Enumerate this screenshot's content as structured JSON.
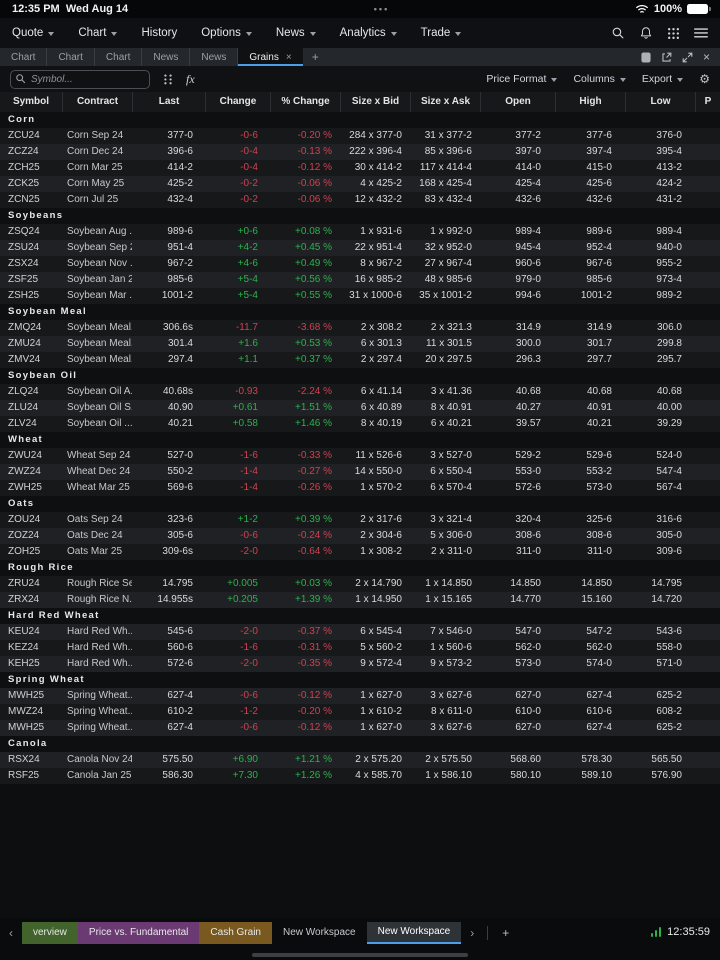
{
  "status_bar": {
    "time": "12:35 PM",
    "date": "Wed Aug 14",
    "ellipsis": "•••",
    "battery_pct": "100%"
  },
  "menu_bar": {
    "items": [
      {
        "label": "Quote",
        "caret": true
      },
      {
        "label": "Chart",
        "caret": true
      },
      {
        "label": "History",
        "caret": false
      },
      {
        "label": "Options",
        "caret": true
      },
      {
        "label": "News",
        "caret": true
      },
      {
        "label": "Analytics",
        "caret": true
      },
      {
        "label": "Trade",
        "caret": true
      }
    ],
    "icons": [
      "search-icon",
      "notifications-bell-icon",
      "apps-grid-icon",
      "hamburger-menu-icon"
    ]
  },
  "tab_bar": {
    "tabs": [
      {
        "label": "Chart",
        "active": false
      },
      {
        "label": "Chart",
        "active": false
      },
      {
        "label": "Chart",
        "active": false
      },
      {
        "label": "News",
        "active": false
      },
      {
        "label": "News",
        "active": false
      },
      {
        "label": "Grains",
        "active": true,
        "close": "×"
      }
    ],
    "add_label": "+",
    "right_icons": [
      "panel-icon",
      "open-external-icon",
      "expand-icon",
      "close-icon"
    ],
    "close_label": "×"
  },
  "toolbar": {
    "search_placeholder": "Symbol...",
    "fx_label": "fx",
    "price_format_label": "Price Format",
    "columns_label": "Columns",
    "export_label": "Export"
  },
  "table": {
    "columns": [
      "Symbol",
      "Contract",
      "Last",
      "Change",
      "% Change",
      "Size x Bid",
      "Size x Ask",
      "Open",
      "High",
      "Low",
      "P"
    ],
    "sections": [
      {
        "name": "Corn",
        "rows": [
          [
            "ZCU24",
            "Corn Sep 24",
            "377-0",
            "-0-6",
            "-0.20 %",
            "284 x 377-0",
            "31 x 377-2",
            "377-2",
            "377-6",
            "376-0"
          ],
          [
            "ZCZ24",
            "Corn Dec 24",
            "396-6",
            "-0-4",
            "-0.13 %",
            "222 x 396-4",
            "85 x 396-6",
            "397-0",
            "397-4",
            "395-4"
          ],
          [
            "ZCH25",
            "Corn Mar 25",
            "414-2",
            "-0-4",
            "-0.12 %",
            "30 x 414-2",
            "117 x 414-4",
            "414-0",
            "415-0",
            "413-2"
          ],
          [
            "ZCK25",
            "Corn May 25",
            "425-2",
            "-0-2",
            "-0.06 %",
            "4 x 425-2",
            "168 x 425-4",
            "425-4",
            "425-6",
            "424-2"
          ],
          [
            "ZCN25",
            "Corn Jul 25",
            "432-4",
            "-0-2",
            "-0.06 %",
            "12 x 432-2",
            "83 x 432-4",
            "432-6",
            "432-6",
            "431-2"
          ]
        ]
      },
      {
        "name": "Soybeans",
        "rows": [
          [
            "ZSQ24",
            "Soybean Aug ...",
            "989-6",
            "+0-6",
            "+0.08 %",
            "1 x 931-6",
            "1 x 992-0",
            "989-4",
            "989-6",
            "989-4"
          ],
          [
            "ZSU24",
            "Soybean Sep 24",
            "951-4",
            "+4-2",
            "+0.45 %",
            "22 x 951-4",
            "32 x 952-0",
            "945-4",
            "952-4",
            "940-0"
          ],
          [
            "ZSX24",
            "Soybean Nov ...",
            "967-2",
            "+4-6",
            "+0.49 %",
            "8 x 967-2",
            "27 x 967-4",
            "960-6",
            "967-6",
            "955-2"
          ],
          [
            "ZSF25",
            "Soybean Jan 25",
            "985-6",
            "+5-4",
            "+0.56 %",
            "16 x 985-2",
            "48 x 985-6",
            "979-0",
            "985-6",
            "973-4"
          ],
          [
            "ZSH25",
            "Soybean Mar ...",
            "1001-2",
            "+5-4",
            "+0.55 %",
            "31 x 1000-6",
            "35 x 1001-2",
            "994-6",
            "1001-2",
            "989-2"
          ]
        ]
      },
      {
        "name": "Soybean Meal",
        "rows": [
          [
            "ZMQ24",
            "Soybean Meal...",
            "306.6s",
            "-11.7",
            "-3.68 %",
            "2 x 308.2",
            "2 x 321.3",
            "314.9",
            "314.9",
            "306.0"
          ],
          [
            "ZMU24",
            "Soybean Meal...",
            "301.4",
            "+1.6",
            "+0.53 %",
            "6 x 301.3",
            "11 x 301.5",
            "300.0",
            "301.7",
            "299.8"
          ],
          [
            "ZMV24",
            "Soybean Meal...",
            "297.4",
            "+1.1",
            "+0.37 %",
            "2 x 297.4",
            "20 x 297.5",
            "296.3",
            "297.7",
            "295.7"
          ]
        ]
      },
      {
        "name": "Soybean Oil",
        "rows": [
          [
            "ZLQ24",
            "Soybean Oil A...",
            "40.68s",
            "-0.93",
            "-2.24 %",
            "6 x 41.14",
            "3 x 41.36",
            "40.68",
            "40.68",
            "40.68"
          ],
          [
            "ZLU24",
            "Soybean Oil S...",
            "40.90",
            "+0.61",
            "+1.51 %",
            "6 x 40.89",
            "8 x 40.91",
            "40.27",
            "40.91",
            "40.00"
          ],
          [
            "ZLV24",
            "Soybean Oil ...",
            "40.21",
            "+0.58",
            "+1.46 %",
            "8 x 40.19",
            "6 x 40.21",
            "39.57",
            "40.21",
            "39.29"
          ]
        ]
      },
      {
        "name": "Wheat",
        "rows": [
          [
            "ZWU24",
            "Wheat Sep 24",
            "527-0",
            "-1-6",
            "-0.33 %",
            "11 x 526-6",
            "3 x 527-0",
            "529-2",
            "529-6",
            "524-0"
          ],
          [
            "ZWZ24",
            "Wheat Dec 24",
            "550-2",
            "-1-4",
            "-0.27 %",
            "14 x 550-0",
            "6 x 550-4",
            "553-0",
            "553-2",
            "547-4"
          ],
          [
            "ZWH25",
            "Wheat Mar 25",
            "569-6",
            "-1-4",
            "-0.26 %",
            "1 x 570-2",
            "6 x 570-4",
            "572-6",
            "573-0",
            "567-4"
          ]
        ]
      },
      {
        "name": "Oats",
        "rows": [
          [
            "ZOU24",
            "Oats Sep 24",
            "323-6",
            "+1-2",
            "+0.39 %",
            "2 x 317-6",
            "3 x 321-4",
            "320-4",
            "325-6",
            "316-6"
          ],
          [
            "ZOZ24",
            "Oats Dec 24",
            "305-6",
            "-0-6",
            "-0.24 %",
            "2 x 304-6",
            "5 x 306-0",
            "308-6",
            "308-6",
            "305-0"
          ],
          [
            "ZOH25",
            "Oats Mar 25",
            "309-6s",
            "-2-0",
            "-0.64 %",
            "1 x 308-2",
            "2 x 311-0",
            "311-0",
            "311-0",
            "309-6"
          ]
        ]
      },
      {
        "name": "Rough Rice",
        "rows": [
          [
            "ZRU24",
            "Rough Rice Se...",
            "14.795",
            "+0.005",
            "+0.03 %",
            "2 x 14.790",
            "1 x 14.850",
            "14.850",
            "14.850",
            "14.795"
          ],
          [
            "ZRX24",
            "Rough Rice N...",
            "14.955s",
            "+0.205",
            "+1.39 %",
            "1 x 14.950",
            "1 x 15.165",
            "14.770",
            "15.160",
            "14.720"
          ]
        ]
      },
      {
        "name": "Hard Red Wheat",
        "rows": [
          [
            "KEU24",
            "Hard Red Wh...",
            "545-6",
            "-2-0",
            "-0.37 %",
            "6 x 545-4",
            "7 x 546-0",
            "547-0",
            "547-2",
            "543-6"
          ],
          [
            "KEZ24",
            "Hard Red Wh...",
            "560-6",
            "-1-6",
            "-0.31 %",
            "5 x 560-2",
            "1 x 560-6",
            "562-0",
            "562-0",
            "558-0"
          ],
          [
            "KEH25",
            "Hard Red Wh...",
            "572-6",
            "-2-0",
            "-0.35 %",
            "9 x 572-4",
            "9 x 573-2",
            "573-0",
            "574-0",
            "571-0"
          ]
        ]
      },
      {
        "name": "Spring Wheat",
        "rows": [
          [
            "MWH25",
            "Spring Wheat...",
            "627-4",
            "-0-6",
            "-0.12 %",
            "1 x 627-0",
            "3 x 627-6",
            "627-0",
            "627-4",
            "625-2"
          ],
          [
            "MWZ24",
            "Spring Wheat...",
            "610-2",
            "-1-2",
            "-0.20 %",
            "1 x 610-2",
            "8 x 611-0",
            "610-0",
            "610-6",
            "608-2"
          ],
          [
            "MWH25",
            "Spring Wheat...",
            "627-4",
            "-0-6",
            "-0.12 %",
            "1 x 627-0",
            "3 x 627-6",
            "627-0",
            "627-4",
            "625-2"
          ]
        ]
      },
      {
        "name": "Canola",
        "rows": [
          [
            "RSX24",
            "Canola Nov 24",
            "575.50",
            "+6.90",
            "+1.21 %",
            "2 x 575.20",
            "2 x 575.50",
            "568.60",
            "578.30",
            "565.50"
          ],
          [
            "RSF25",
            "Canola Jan 25",
            "586.30",
            "+7.30",
            "+1.26 %",
            "4 x 585.70",
            "1 x 586.10",
            "580.10",
            "589.10",
            "576.90"
          ]
        ]
      }
    ]
  },
  "bottom_bar": {
    "workspaces": [
      {
        "label": "verview",
        "color": "#42632b",
        "active": false
      },
      {
        "label": "Price vs. Fundamental",
        "color": "#6c3a72",
        "active": false
      },
      {
        "label": "Cash Grain",
        "color": "#79591f",
        "active": false
      },
      {
        "label": "New Workspace",
        "color": null,
        "active": false
      },
      {
        "label": "New Workspace",
        "color": null,
        "active": true
      }
    ],
    "add_label": "+",
    "time": "12:35:59"
  },
  "colors": {
    "positive": "#2bb24c",
    "negative": "#d0414f",
    "accent": "#4b9fea"
  }
}
